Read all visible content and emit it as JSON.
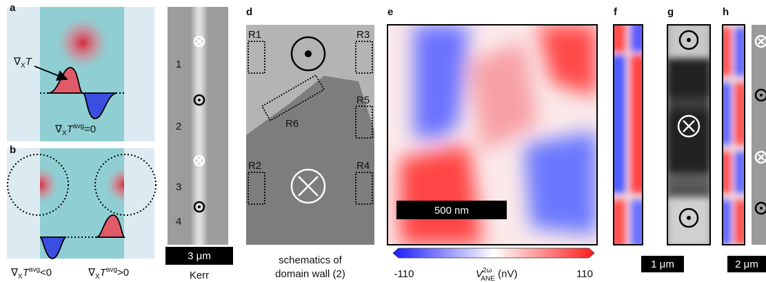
{
  "panels": {
    "a": {
      "label": "a",
      "arrow_label": {
        "nabla": "∇",
        "sub": "X",
        "main": "T"
      },
      "caption": {
        "nabla": "∇",
        "sub": "X",
        "main": "T",
        "sup": "avg",
        "rest": "=0"
      }
    },
    "b": {
      "label": "b",
      "captions": [
        {
          "nabla": "∇",
          "sub": "X",
          "main": "T",
          "sup": "avg",
          "rest": "<0"
        },
        {
          "nabla": "∇",
          "sub": "X",
          "main": "T",
          "sup": "avg",
          "rest": ">0"
        }
      ]
    },
    "c": {
      "label": "c",
      "markers": [
        "1",
        "2",
        "3",
        "4"
      ],
      "scale_bar": "3 μm",
      "caption": "Kerr"
    },
    "d": {
      "label": "d",
      "regions": [
        "R1",
        "R2",
        "R3",
        "R4",
        "R5",
        "R6"
      ],
      "caption": [
        "schematics of",
        "domain wall (2)"
      ]
    },
    "e": {
      "label": "e",
      "scale_bar": "500 nm",
      "colorbar": {
        "min": -110,
        "max": 110,
        "label": {
          "main": "V",
          "sup": "2ω",
          "sub": "ANE",
          "unit": " (nV)"
        }
      }
    },
    "f": {
      "label": "f",
      "scale_bar": "1 μm"
    },
    "g": {
      "label": "g"
    },
    "h": {
      "label": "h",
      "scale_bar": "2 μm"
    }
  }
}
